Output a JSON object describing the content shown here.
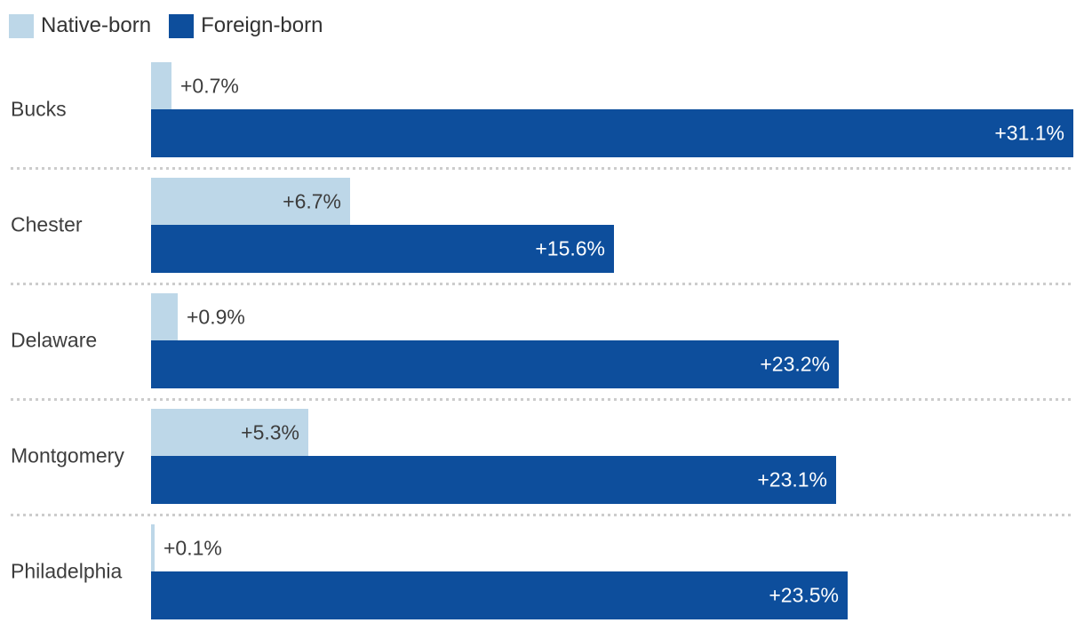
{
  "legend": {
    "items": [
      {
        "label": "Native-born",
        "color": "#bdd7e8"
      },
      {
        "label": "Foreign-born",
        "color": "#0d4e9c"
      }
    ]
  },
  "chart_data": {
    "type": "bar",
    "orientation": "horizontal",
    "categories": [
      "Bucks",
      "Chester",
      "Delaware",
      "Montgomery",
      "Philadelphia"
    ],
    "series": [
      {
        "name": "Native-born",
        "color": "#bdd7e8",
        "values": [
          0.7,
          6.7,
          0.9,
          5.3,
          0.1
        ],
        "value_labels": [
          "+0.7%",
          "+6.7%",
          "+0.9%",
          "+5.3%",
          "+0.1%"
        ]
      },
      {
        "name": "Foreign-born",
        "color": "#0d4e9c",
        "values": [
          31.1,
          15.6,
          23.2,
          23.1,
          23.5
        ],
        "value_labels": [
          "+31.1%",
          "+15.6%",
          "+23.2%",
          "+23.1%",
          "+23.5%"
        ]
      }
    ],
    "xlim": [
      0,
      31.1
    ],
    "value_suffix": "%",
    "legend_position": "top-left",
    "grid": false,
    "row_separator": "dotted"
  },
  "colors": {
    "label_text": "#3d3d3d",
    "value_text_on_dark": "#ffffff",
    "separator": "#cccccc"
  }
}
